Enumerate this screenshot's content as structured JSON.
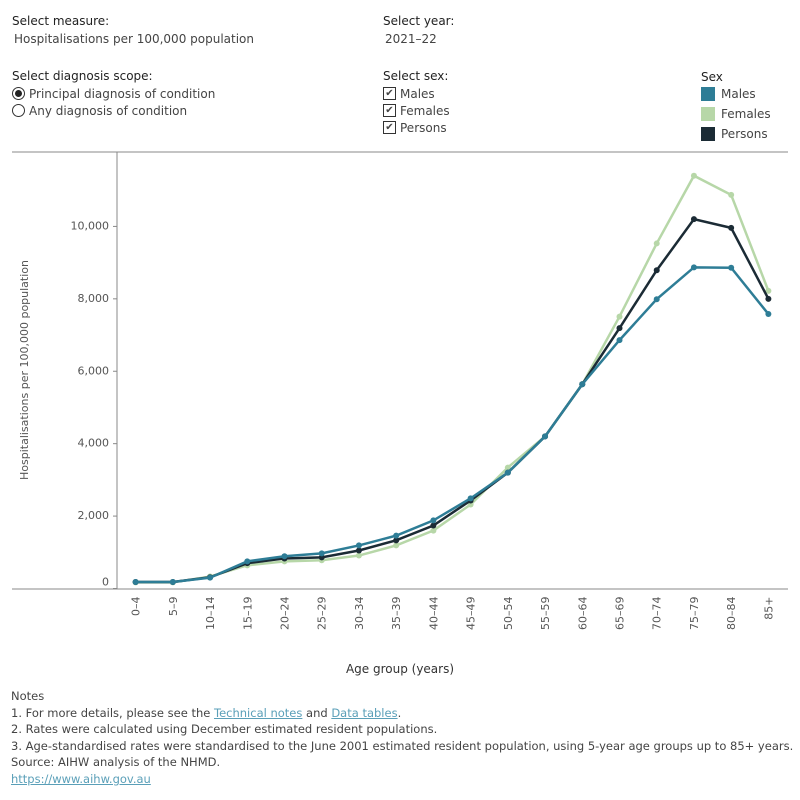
{
  "controls": {
    "measure": {
      "label": "Select measure:",
      "value": "Hospitalisations per 100,000 population"
    },
    "year": {
      "label": "Select year:",
      "value": "2021–22"
    },
    "scope": {
      "label": "Select diagnosis scope:",
      "selected": 0,
      "options": [
        "Principal diagnosis of condition",
        "Any diagnosis of condition"
      ]
    },
    "sex": {
      "label": "Select sex:",
      "options": [
        {
          "label": "Males",
          "checked": true
        },
        {
          "label": "Females",
          "checked": true
        },
        {
          "label": "Persons",
          "checked": true
        }
      ]
    }
  },
  "chart_data": {
    "type": "line",
    "legend_title": "Sex",
    "x_label": "Age group (years)",
    "y_label": "Hospitalisations per 100,000 population",
    "categories": [
      "0–4",
      "5–9",
      "10–14",
      "15–19",
      "20–24",
      "25–29",
      "30–34",
      "35–39",
      "40–44",
      "45–49",
      "50–54",
      "55–59",
      "60–64",
      "65–69",
      "70–74",
      "75–79",
      "80–84",
      "85+"
    ],
    "series": [
      {
        "name": "Females",
        "color": "#b7d7a8",
        "values": [
          170,
          170,
          330,
          640,
          750,
          780,
          910,
          1190,
          1600,
          2320,
          3340,
          4200,
          5640,
          7510,
          9530,
          11400,
          10870,
          8220
        ]
      },
      {
        "name": "Persons",
        "color": "#1b2b35",
        "values": [
          180,
          180,
          310,
          700,
          830,
          860,
          1050,
          1330,
          1740,
          2430,
          3200,
          4200,
          5640,
          7190,
          8790,
          10200,
          9960,
          8000
        ]
      },
      {
        "name": "Males",
        "color": "#2e7d96",
        "values": [
          180,
          180,
          300,
          750,
          890,
          970,
          1190,
          1460,
          1880,
          2490,
          3200,
          4200,
          5640,
          6860,
          7990,
          8870,
          8860,
          7580
        ]
      }
    ],
    "legend_order": [
      2,
      0,
      1
    ],
    "ylim": [
      0,
      12000
    ],
    "yticks": [
      0,
      {
        "value": 2000,
        "label": "2,000"
      },
      {
        "value": 4000,
        "label": "4,000"
      },
      {
        "value": 6000,
        "label": "6,000"
      },
      {
        "value": 8000,
        "label": "8,000"
      },
      {
        "value": 10000,
        "label": "10,000"
      }
    ]
  },
  "notes": {
    "heading": "Notes",
    "line1": [
      "1. For more details, please see the",
      "Technical notes",
      "and",
      "Data tables",
      "."
    ],
    "line2": "2. Rates were calculated using December estimated resident populations.",
    "line3": "3. Age-standardised rates were standardised to the June 2001 estimated resident population, using 5-year age groups up to 85+ years.",
    "source": "Source: AIHW analysis of the NHMD.",
    "url": "https://www.aihw.gov.au"
  }
}
